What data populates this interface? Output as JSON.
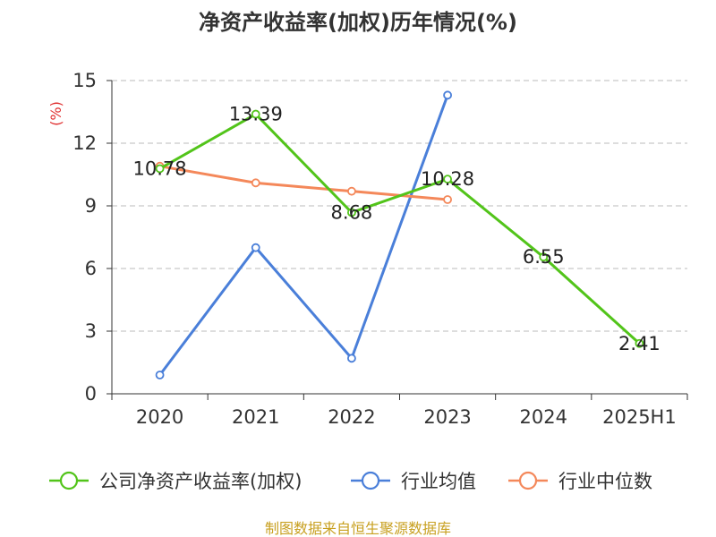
{
  "title": "净资产收益率(加权)历年情况(%)",
  "unit_label": "(%)",
  "source": "制图数据来自恒生聚源数据库",
  "chart_data": {
    "type": "line",
    "categories": [
      "2020",
      "2021",
      "2022",
      "2023",
      "2024",
      "2025H1"
    ],
    "ylim": [
      0,
      15
    ],
    "yticks": [
      "0",
      "3",
      "6",
      "9",
      "12",
      "15"
    ],
    "grid": true,
    "legend_position": "bottom",
    "series": [
      {
        "name": "公司净资产收益率(加权)",
        "color": "#52c41a",
        "values": [
          10.78,
          13.39,
          8.68,
          10.28,
          6.55,
          2.41
        ],
        "labels": [
          "10.78",
          "13.39",
          "8.68",
          "10.28",
          "6.55",
          "2.41"
        ]
      },
      {
        "name": "行业均值",
        "color": "#4a7fd9",
        "values": [
          0.9,
          7.0,
          1.7,
          14.3,
          null,
          null
        ]
      },
      {
        "name": "行业中位数",
        "color": "#f4885a",
        "values": [
          10.9,
          10.1,
          9.7,
          9.3,
          null,
          null
        ]
      }
    ]
  }
}
